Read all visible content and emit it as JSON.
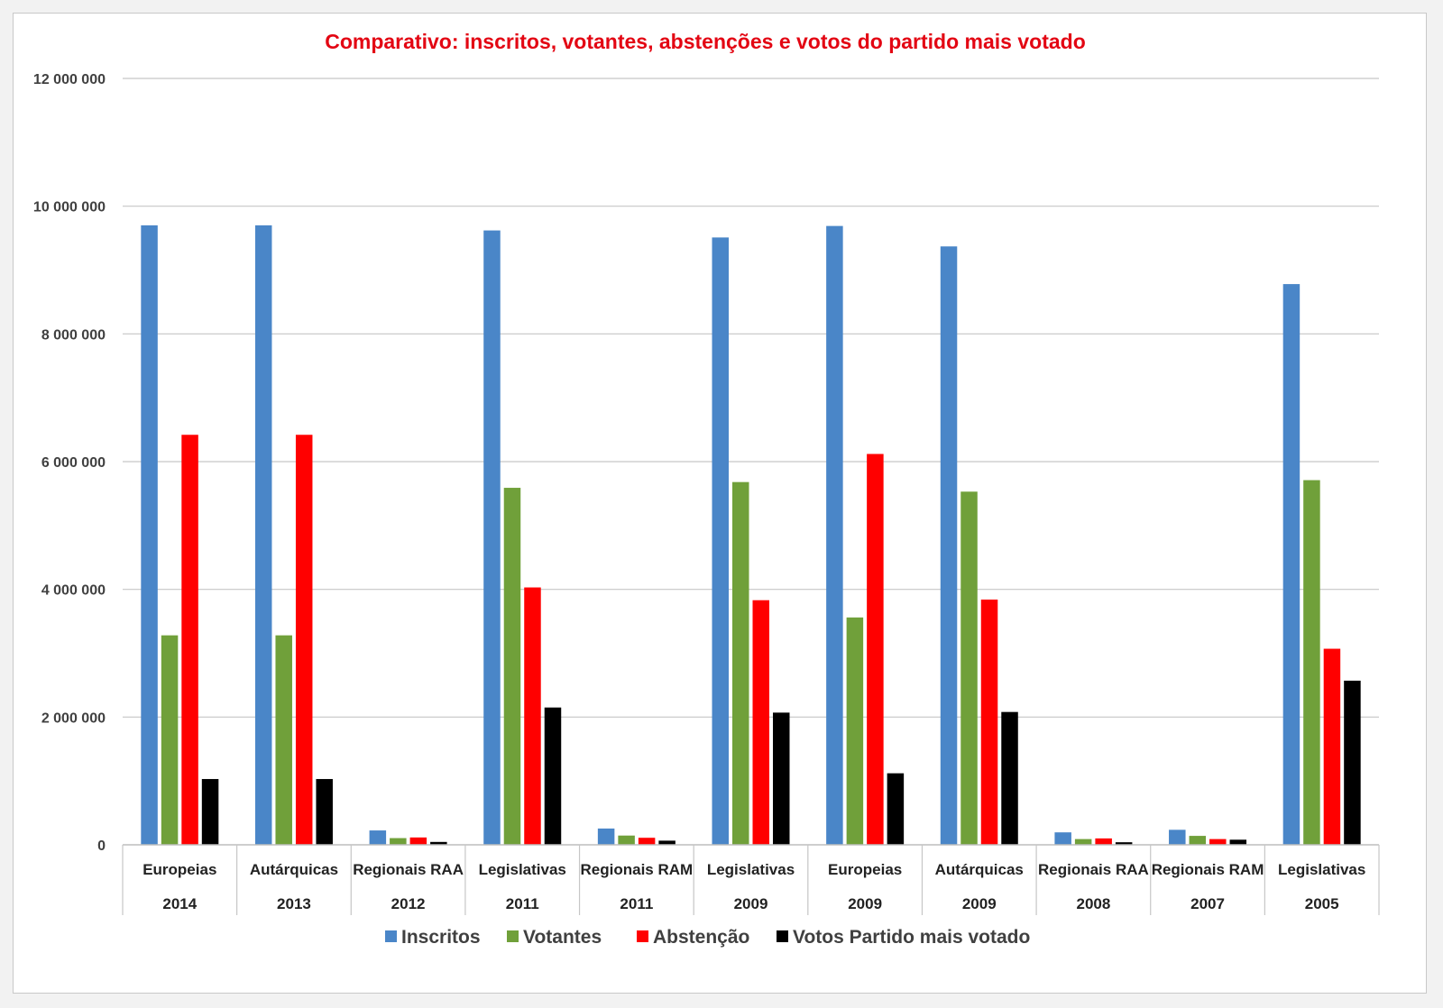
{
  "chart_data": {
    "type": "bar",
    "title": "Comparativo: inscritos, votantes, abstenções e votos do partido mais votado",
    "title_color": "#e30613",
    "xlabel": "",
    "ylabel": "",
    "ylim": [
      0,
      12000000
    ],
    "grid": true,
    "legend_position": "bottom",
    "y_ticks": [
      {
        "value": 0,
        "label": "0"
      },
      {
        "value": 2000000,
        "label": "2 000 000"
      },
      {
        "value": 4000000,
        "label": "4 000 000"
      },
      {
        "value": 6000000,
        "label": "6 000 000"
      },
      {
        "value": 8000000,
        "label": "8 000 000"
      },
      {
        "value": 10000000,
        "label": "10 000 000"
      },
      {
        "value": 12000000,
        "label": "12 000 000"
      }
    ],
    "categories": [
      {
        "election": "Europeias",
        "year": "2014"
      },
      {
        "election": "Autárquicas",
        "year": "2013"
      },
      {
        "election": "Regionais RAA",
        "year": "2012"
      },
      {
        "election": "Legislativas",
        "year": "2011"
      },
      {
        "election": "Regionais RAM",
        "year": "2011"
      },
      {
        "election": "Legislativas",
        "year": "2009"
      },
      {
        "election": "Europeias",
        "year": "2009"
      },
      {
        "election": "Autárquicas",
        "year": "2009"
      },
      {
        "election": "Regionais RAA",
        "year": "2008"
      },
      {
        "election": "Regionais RAM",
        "year": "2007"
      },
      {
        "election": "Legislativas",
        "year": "2005"
      }
    ],
    "series": [
      {
        "name": "Inscritos",
        "color": "#4a86c8",
        "values": [
          9700000,
          9700000,
          225000,
          9620000,
          255000,
          9510000,
          9690000,
          9370000,
          195000,
          235000,
          8780000
        ]
      },
      {
        "name": "Votantes",
        "color": "#70a03a",
        "values": [
          3280000,
          3280000,
          105000,
          5590000,
          145000,
          5680000,
          3560000,
          5530000,
          90000,
          140000,
          5710000
        ]
      },
      {
        "name": "Abstenção",
        "color": "#ff0000",
        "values": [
          6420000,
          6420000,
          115000,
          4030000,
          110000,
          3830000,
          6120000,
          3840000,
          100000,
          90000,
          3070000
        ]
      },
      {
        "name": "Votos Partido mais votado",
        "color": "#000000",
        "values": [
          1030000,
          1030000,
          45000,
          2150000,
          65000,
          2070000,
          1120000,
          2080000,
          40000,
          80000,
          2570000
        ]
      }
    ]
  }
}
